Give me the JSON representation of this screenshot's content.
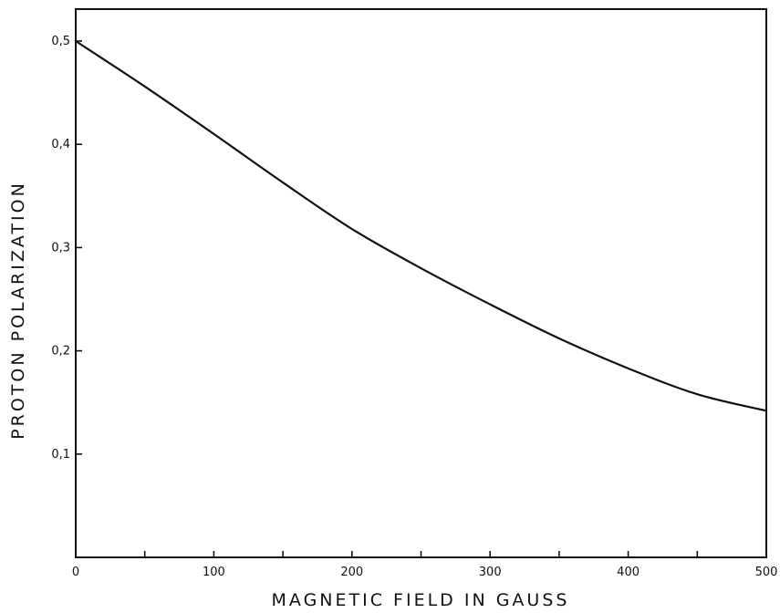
{
  "chart_data": {
    "type": "line",
    "title": "",
    "xlabel": "MAGNETIC  FIELD  IN  GAUSS",
    "ylabel": "PROTON  POLARIZATION",
    "xlim": [
      0,
      500
    ],
    "ylim": [
      0,
      0.5
    ],
    "x_ticks": [
      0,
      50,
      100,
      150,
      200,
      250,
      300,
      350,
      400,
      450,
      500
    ],
    "x_tick_labels": [
      "0",
      "",
      "100",
      "",
      "200",
      "",
      "300",
      "",
      "400",
      "",
      "500"
    ],
    "y_ticks": [
      0.1,
      0.2,
      0.3,
      0.4,
      0.5
    ],
    "y_tick_labels": [
      "0,1",
      "0,2",
      "0,3",
      "0,4",
      "0,5"
    ],
    "grid": false,
    "series": [
      {
        "x": [
          0,
          50,
          100,
          150,
          200,
          250,
          300,
          350,
          400,
          450,
          500
        ],
        "y": [
          0.5,
          0.456,
          0.41,
          0.363,
          0.318,
          0.28,
          0.245,
          0.212,
          0.183,
          0.158,
          0.142
        ]
      }
    ]
  }
}
